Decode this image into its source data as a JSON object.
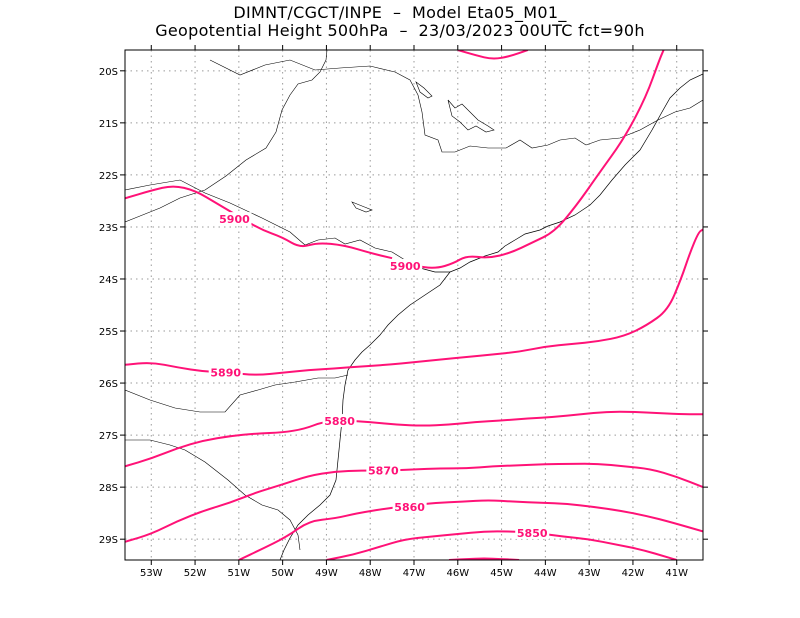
{
  "header": {
    "line1": "DIMNT/CGCT/INPE  –  Model Eta05_M01_",
    "line2": "Geopotential Height 500hPa  –  23/03/2023 00UTC fct=90h"
  },
  "colors": {
    "contour": "#ff1277",
    "coast": "#000000",
    "grid": "#9a9a9a",
    "frame": "#000000"
  },
  "map": {
    "lon_range": [
      -53.6,
      -40.4
    ],
    "lat_range": [
      -19.6,
      -29.4
    ],
    "lon_ticks": [
      "53W",
      "52W",
      "51W",
      "50W",
      "49W",
      "48W",
      "47W",
      "46W",
      "45W",
      "44W",
      "43W",
      "42W",
      "41W"
    ],
    "lat_ticks": [
      "20S",
      "21S",
      "22S",
      "23S",
      "24S",
      "25S",
      "26S",
      "27S",
      "28S",
      "29S"
    ]
  },
  "contours": [
    {
      "label": "5900",
      "points": [
        [
          -53.6,
          -22.45
        ],
        [
          -53.0,
          -22.3
        ],
        [
          -52.5,
          -22.2
        ],
        [
          -52.0,
          -22.3
        ],
        [
          -51.5,
          -22.55
        ],
        [
          -51.0,
          -22.8
        ],
        [
          -50.5,
          -23.05
        ],
        [
          -50.0,
          -23.2
        ],
        [
          -49.6,
          -23.4
        ],
        [
          -49.2,
          -23.3
        ],
        [
          -48.6,
          -23.35
        ],
        [
          -48.0,
          -23.5
        ],
        [
          -47.5,
          -23.6
        ]
      ],
      "label_at": [
        -51.1,
        -22.85
      ]
    },
    {
      "label": "5900",
      "points": [
        [
          -47.5,
          -23.65
        ],
        [
          -47.0,
          -23.75
        ],
        [
          -46.5,
          -23.8
        ],
        [
          -46.1,
          -23.7
        ],
        [
          -45.8,
          -23.55
        ],
        [
          -45.3,
          -23.6
        ],
        [
          -44.8,
          -23.5
        ],
        [
          -44.3,
          -23.3
        ],
        [
          -43.8,
          -23.1
        ],
        [
          -43.3,
          -22.6
        ],
        [
          -42.8,
          -22.0
        ],
        [
          -42.2,
          -21.3
        ],
        [
          -41.7,
          -20.5
        ],
        [
          -41.4,
          -19.8
        ],
        [
          -41.3,
          -19.6
        ]
      ],
      "label_at": [
        -47.2,
        -23.75
      ]
    },
    {
      "label": "5890",
      "points": [
        [
          -53.6,
          -25.65
        ],
        [
          -53.0,
          -25.6
        ],
        [
          -52.4,
          -25.7
        ],
        [
          -51.8,
          -25.78
        ],
        [
          -51.2,
          -25.8
        ],
        [
          -50.6,
          -25.85
        ],
        [
          -50.0,
          -25.8
        ],
        [
          -49.4,
          -25.75
        ],
        [
          -48.8,
          -25.72
        ],
        [
          -48.2,
          -25.68
        ],
        [
          -47.6,
          -25.65
        ],
        [
          -47.0,
          -25.6
        ],
        [
          -46.4,
          -25.55
        ],
        [
          -45.8,
          -25.5
        ],
        [
          -45.2,
          -25.45
        ],
        [
          -44.6,
          -25.4
        ],
        [
          -44.0,
          -25.3
        ],
        [
          -43.4,
          -25.25
        ],
        [
          -42.8,
          -25.2
        ],
        [
          -42.2,
          -25.1
        ],
        [
          -41.7,
          -24.9
        ],
        [
          -41.2,
          -24.6
        ],
        [
          -40.9,
          -24.0
        ],
        [
          -40.7,
          -23.5
        ],
        [
          -40.5,
          -23.1
        ],
        [
          -40.4,
          -23.05
        ]
      ],
      "label_at": [
        -51.3,
        -25.8
      ]
    },
    {
      "label": "5880",
      "points": [
        [
          -53.6,
          -27.6
        ],
        [
          -53.0,
          -27.45
        ],
        [
          -52.4,
          -27.25
        ],
        [
          -51.8,
          -27.1
        ],
        [
          -51.2,
          -27.02
        ],
        [
          -50.6,
          -26.97
        ],
        [
          -50.0,
          -26.95
        ],
        [
          -49.5,
          -26.88
        ],
        [
          -49.1,
          -26.75
        ],
        [
          -48.6,
          -26.72
        ],
        [
          -48.0,
          -26.75
        ],
        [
          -47.4,
          -26.8
        ],
        [
          -46.8,
          -26.82
        ],
        [
          -46.2,
          -26.8
        ],
        [
          -45.6,
          -26.75
        ],
        [
          -45.0,
          -26.72
        ],
        [
          -44.4,
          -26.68
        ],
        [
          -43.8,
          -26.65
        ],
        [
          -43.2,
          -26.6
        ],
        [
          -42.6,
          -26.55
        ],
        [
          -42.0,
          -26.55
        ],
        [
          -41.4,
          -26.58
        ],
        [
          -40.8,
          -26.6
        ],
        [
          -40.4,
          -26.6
        ]
      ],
      "label_at": [
        -48.7,
        -26.73
      ]
    },
    {
      "label": "5870",
      "points": [
        [
          -53.6,
          -29.05
        ],
        [
          -53.0,
          -28.9
        ],
        [
          -52.4,
          -28.65
        ],
        [
          -51.8,
          -28.45
        ],
        [
          -51.2,
          -28.3
        ],
        [
          -50.6,
          -28.1
        ],
        [
          -50.0,
          -27.95
        ],
        [
          -49.4,
          -27.78
        ],
        [
          -48.8,
          -27.7
        ],
        [
          -48.2,
          -27.68
        ],
        [
          -47.6,
          -27.68
        ],
        [
          -47.0,
          -27.66
        ],
        [
          -46.4,
          -27.64
        ],
        [
          -45.8,
          -27.64
        ],
        [
          -45.2,
          -27.6
        ],
        [
          -44.6,
          -27.58
        ],
        [
          -44.0,
          -27.56
        ],
        [
          -43.4,
          -27.55
        ],
        [
          -42.8,
          -27.55
        ],
        [
          -42.2,
          -27.6
        ],
        [
          -41.6,
          -27.65
        ],
        [
          -41.0,
          -27.8
        ],
        [
          -40.4,
          -28.0
        ]
      ],
      "label_at": [
        -47.7,
        -27.68
      ]
    },
    {
      "label": "5860",
      "points": [
        [
          -51.0,
          -29.4
        ],
        [
          -50.5,
          -29.2
        ],
        [
          -49.9,
          -28.95
        ],
        [
          -49.4,
          -28.65
        ],
        [
          -48.8,
          -28.6
        ],
        [
          -48.3,
          -28.5
        ],
        [
          -47.7,
          -28.42
        ],
        [
          -47.1,
          -28.35
        ],
        [
          -46.5,
          -28.3
        ],
        [
          -45.9,
          -28.28
        ],
        [
          -45.3,
          -28.25
        ],
        [
          -44.7,
          -28.28
        ],
        [
          -44.1,
          -28.3
        ],
        [
          -43.5,
          -28.32
        ],
        [
          -42.9,
          -28.38
        ],
        [
          -42.3,
          -28.45
        ],
        [
          -41.7,
          -28.55
        ],
        [
          -41.1,
          -28.68
        ],
        [
          -40.4,
          -28.85
        ]
      ],
      "label_at": [
        -47.1,
        -28.38
      ]
    },
    {
      "label": "5850",
      "points": [
        [
          -49.0,
          -29.4
        ],
        [
          -48.4,
          -29.3
        ],
        [
          -47.8,
          -29.15
        ],
        [
          -47.2,
          -29.0
        ],
        [
          -46.6,
          -28.95
        ],
        [
          -46.0,
          -28.9
        ],
        [
          -45.4,
          -28.85
        ],
        [
          -44.8,
          -28.85
        ],
        [
          -44.2,
          -28.88
        ],
        [
          -43.6,
          -28.95
        ],
        [
          -43.0,
          -29.0
        ],
        [
          -42.4,
          -29.1
        ],
        [
          -41.8,
          -29.2
        ],
        [
          -41.2,
          -29.35
        ],
        [
          -41.0,
          -29.4
        ]
      ],
      "label_at": [
        -44.3,
        -28.88
      ]
    },
    {
      "label": "",
      "points": [
        [
          -46.0,
          -19.6
        ],
        [
          -45.6,
          -19.7
        ],
        [
          -45.2,
          -19.78
        ],
        [
          -44.8,
          -19.72
        ],
        [
          -44.4,
          -19.6
        ]
      ],
      "label_at": null
    },
    {
      "label": "",
      "points": [
        [
          -46.2,
          -29.4
        ],
        [
          -45.8,
          -29.38
        ],
        [
          -45.4,
          -29.37
        ],
        [
          -45.0,
          -29.38
        ],
        [
          -44.6,
          -29.4
        ]
      ],
      "label_at": null
    }
  ]
}
